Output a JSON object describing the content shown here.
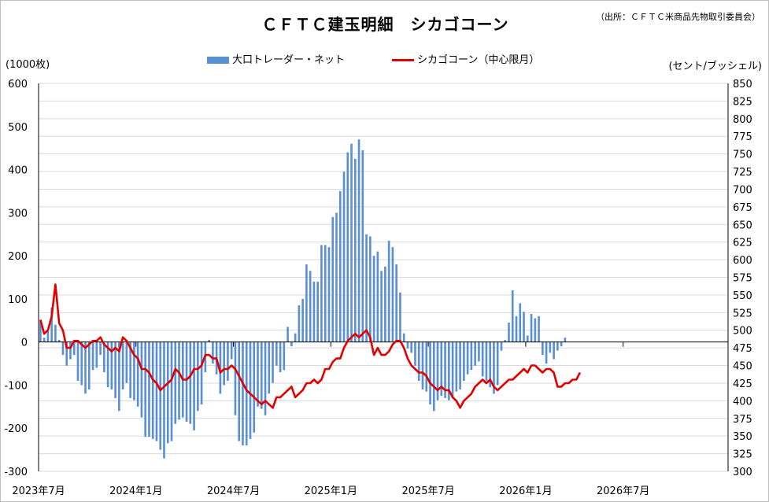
{
  "title": "ＣＦＴＣ建玉明細　シカゴコーン",
  "source": "（出所：ＣＦＴＣ米商品先物取引委員会）",
  "chart_data": {
    "type": "bar+line",
    "title": "ＣＦＴＣ建玉明細　シカゴコーン",
    "left_axis_label": "(1000枚)",
    "right_axis_label": "(セント/ブッシェル)",
    "left_ylim": [
      -300,
      600
    ],
    "left_ticks": [
      "-300",
      "-200",
      "-100",
      "0",
      "100",
      "200",
      "300",
      "400",
      "500",
      "600"
    ],
    "right_ylim": [
      300,
      850
    ],
    "right_ticks": [
      "300",
      "325",
      "350",
      "375",
      "400",
      "425",
      "450",
      "475",
      "500",
      "525",
      "550",
      "575",
      "600",
      "625",
      "650",
      "675",
      "700",
      "725",
      "750",
      "775",
      "800",
      "825",
      "850"
    ],
    "x_tick_labels": [
      "2023年7月",
      "2024年1月",
      "2024年7月",
      "2025年1月",
      "2025年7月",
      "2026年1月",
      "2026年7月"
    ],
    "weeks_total": 184,
    "grid": true,
    "legend_position": "top-center",
    "series": [
      {
        "name": "大口トレーダー・ネット",
        "kind": "bar",
        "axis": "left",
        "color": "#5b8fd3",
        "values": [
          50,
          10,
          25,
          80,
          40,
          5,
          -30,
          -55,
          -40,
          -30,
          -90,
          -100,
          -120,
          -110,
          -65,
          -60,
          -30,
          -70,
          -105,
          -110,
          -130,
          -160,
          -110,
          -95,
          -130,
          -135,
          -150,
          -175,
          -220,
          -220,
          -225,
          -230,
          -250,
          -270,
          -235,
          -230,
          -190,
          -180,
          -175,
          -185,
          -190,
          -205,
          -160,
          -145,
          -70,
          5,
          -50,
          -75,
          -120,
          -100,
          -90,
          -40,
          -170,
          -230,
          -240,
          -240,
          -225,
          -210,
          -150,
          -155,
          -170,
          -120,
          -95,
          -55,
          -70,
          -65,
          35,
          -10,
          20,
          85,
          100,
          180,
          165,
          140,
          140,
          225,
          225,
          220,
          290,
          300,
          350,
          395,
          440,
          460,
          425,
          470,
          445,
          250,
          245,
          200,
          210,
          165,
          175,
          235,
          220,
          180,
          115,
          20,
          -15,
          -25,
          -55,
          -90,
          -110,
          -115,
          -145,
          -160,
          -135,
          -125,
          -130,
          -135,
          -130,
          -115,
          -110,
          -90,
          -75,
          -65,
          -55,
          -45,
          -80,
          -90,
          -105,
          -120,
          -100,
          -20,
          5,
          45,
          120,
          60,
          90,
          70,
          15,
          65,
          55,
          60,
          -30,
          -50,
          -25,
          -40,
          -20,
          -10,
          10
        ]
      },
      {
        "name": "シカゴコーン（中心限月）",
        "kind": "line",
        "axis": "right",
        "color": "#e00000",
        "values": [
          515,
          495,
          500,
          520,
          565,
          510,
          500,
          475,
          475,
          485,
          485,
          480,
          475,
          480,
          485,
          485,
          490,
          480,
          475,
          470,
          475,
          470,
          490,
          485,
          475,
          465,
          460,
          445,
          445,
          440,
          430,
          425,
          415,
          420,
          425,
          430,
          445,
          440,
          430,
          430,
          435,
          445,
          445,
          450,
          465,
          465,
          460,
          460,
          440,
          445,
          445,
          450,
          445,
          435,
          425,
          415,
          410,
          405,
          400,
          395,
          400,
          395,
          390,
          405,
          405,
          410,
          415,
          420,
          405,
          410,
          415,
          425,
          425,
          430,
          425,
          430,
          445,
          445,
          455,
          460,
          460,
          475,
          485,
          490,
          495,
          490,
          495,
          500,
          490,
          465,
          475,
          465,
          465,
          470,
          480,
          485,
          485,
          475,
          460,
          450,
          445,
          440,
          440,
          435,
          425,
          420,
          415,
          420,
          415,
          415,
          405,
          400,
          390,
          400,
          405,
          410,
          420,
          425,
          430,
          425,
          430,
          420,
          415,
          420,
          425,
          430,
          430,
          435,
          440,
          445,
          440,
          450,
          450,
          445,
          440,
          445,
          445,
          440,
          420,
          420,
          425,
          425,
          430,
          430,
          440
        ]
      }
    ]
  }
}
